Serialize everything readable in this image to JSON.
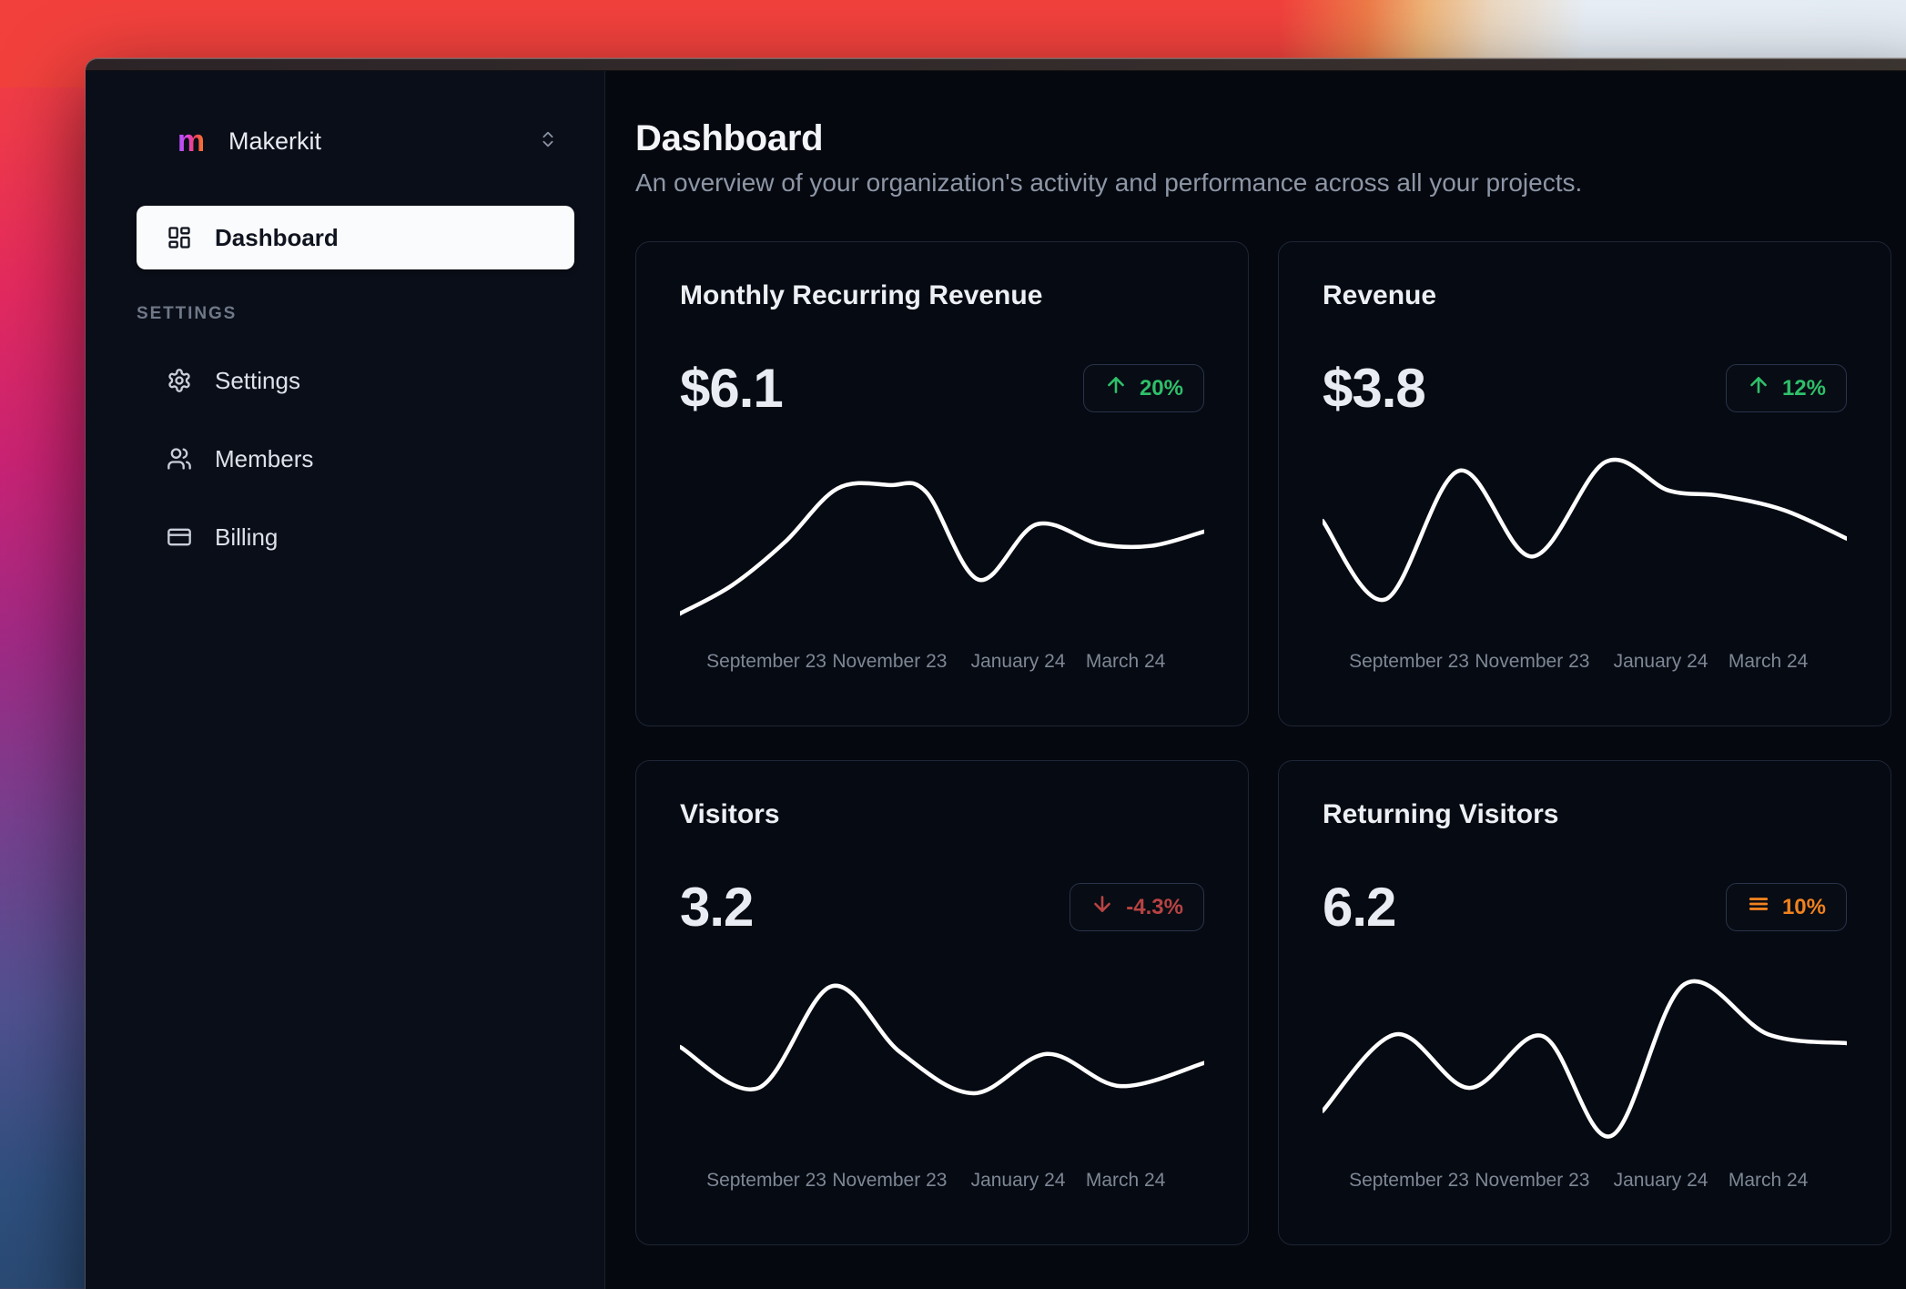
{
  "sidebar": {
    "workspace_name": "Makerkit",
    "logo_letter": "m",
    "nav_dashboard": "Dashboard",
    "section_label": "SETTINGS",
    "items": [
      {
        "label": "Settings",
        "icon": "gear-icon"
      },
      {
        "label": "Members",
        "icon": "users-icon"
      },
      {
        "label": "Billing",
        "icon": "credit-card-icon"
      }
    ]
  },
  "header": {
    "title": "Dashboard",
    "subtitle": "An overview of your organization's activity and performance across all your projects."
  },
  "cards": [
    {
      "title": "Monthly Recurring Revenue",
      "value": "$6.1",
      "trend": "20%",
      "trend_direction": "up",
      "trend_icon": "arrow-up-icon"
    },
    {
      "title": "Revenue",
      "value": "$3.8",
      "trend": "12%",
      "trend_direction": "up",
      "trend_icon": "arrow-up-icon"
    },
    {
      "title": "Visitors",
      "value": "3.2",
      "trend": "-4.3%",
      "trend_direction": "down",
      "trend_icon": "arrow-down-icon"
    },
    {
      "title": "Returning Visitors",
      "value": "6.2",
      "trend": "10%",
      "trend_direction": "neutral",
      "trend_icon": "three-lines-icon"
    }
  ],
  "colors": {
    "trend_up_green": "#2ec06a",
    "trend_down_red": "#b84343",
    "trend_neutral_orange": "#f0821e",
    "chart_line": "#ffffff",
    "sidebar_active_bg": "#fafbfd"
  },
  "chart_data": [
    {
      "type": "line",
      "title": "Monthly Recurring Revenue",
      "x_labels": [
        "September 23",
        "November 23",
        "January 24",
        "March 24"
      ],
      "y_axis": "hidden (sparkline, normalized 0-1 estimates)",
      "points": [
        [
          0,
          0.1
        ],
        [
          10,
          0.26
        ],
        [
          20,
          0.5
        ],
        [
          30,
          0.8
        ],
        [
          40,
          0.82
        ],
        [
          47,
          0.78
        ],
        [
          57,
          0.29
        ],
        [
          68,
          0.6
        ],
        [
          80,
          0.49
        ],
        [
          90,
          0.48
        ],
        [
          100,
          0.56
        ]
      ]
    },
    {
      "type": "line",
      "title": "Revenue",
      "x_labels": [
        "September 23",
        "November 23",
        "January 24",
        "March 24"
      ],
      "y_axis": "hidden (sparkline, normalized 0-1 estimates)",
      "points": [
        [
          0,
          0.62
        ],
        [
          12,
          0.18
        ],
        [
          26,
          0.9
        ],
        [
          40,
          0.42
        ],
        [
          54,
          0.95
        ],
        [
          66,
          0.79
        ],
        [
          76,
          0.76
        ],
        [
          88,
          0.68
        ],
        [
          100,
          0.52
        ]
      ]
    },
    {
      "type": "line",
      "title": "Visitors",
      "x_labels": [
        "September 23",
        "November 23",
        "January 24",
        "March 24"
      ],
      "y_axis": "hidden (sparkline, normalized 0-1 estimates)",
      "points": [
        [
          0,
          0.58
        ],
        [
          15,
          0.35
        ],
        [
          29,
          0.92
        ],
        [
          42,
          0.55
        ],
        [
          56,
          0.32
        ],
        [
          70,
          0.54
        ],
        [
          84,
          0.36
        ],
        [
          100,
          0.49
        ]
      ]
    },
    {
      "type": "line",
      "title": "Returning Visitors",
      "x_labels": [
        "September 23",
        "November 23",
        "January 24",
        "March 24"
      ],
      "y_axis": "hidden (sparkline, normalized 0-1 estimates)",
      "points": [
        [
          0,
          0.22
        ],
        [
          14,
          0.65
        ],
        [
          28,
          0.35
        ],
        [
          42,
          0.64
        ],
        [
          55,
          0.08
        ],
        [
          69,
          0.93
        ],
        [
          85,
          0.65
        ],
        [
          100,
          0.6
        ]
      ]
    }
  ]
}
